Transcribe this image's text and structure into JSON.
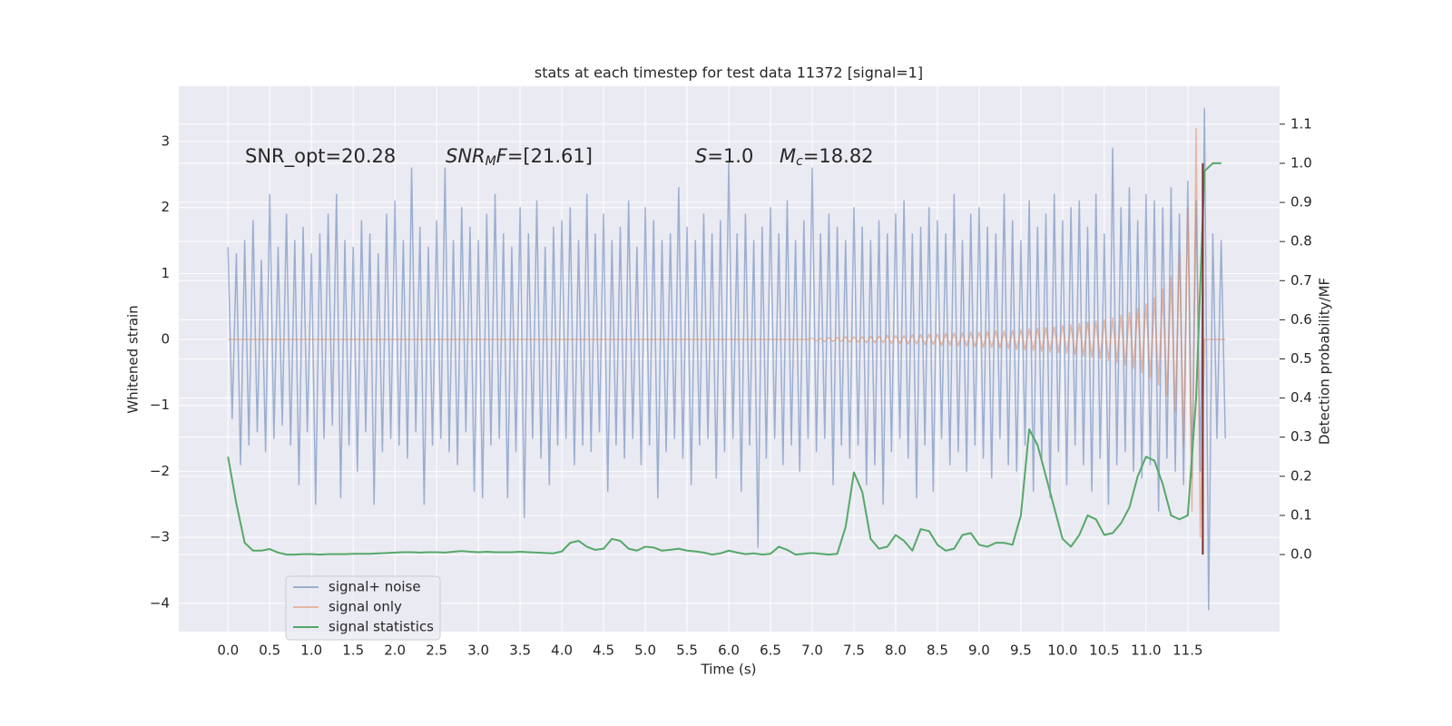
{
  "chart_data": {
    "type": "line",
    "title": "stats at each timestep for test data 11372 [signal=1]",
    "xlabel": "Time (s)",
    "ylabel": "Whitened strain",
    "y2label": "Detection probability/MF",
    "xlim": [
      -0.59,
      12.6
    ],
    "ylim": [
      -4.43,
      3.84
    ],
    "y2lim": [
      -0.197,
      1.197
    ],
    "xticks": [
      {
        "value": 0,
        "label": "0.0"
      },
      {
        "value": 0.5,
        "label": "0.5"
      },
      {
        "value": 1,
        "label": "1.0"
      },
      {
        "value": 1.5,
        "label": "1.5"
      },
      {
        "value": 2,
        "label": "2.0"
      },
      {
        "value": 2.5,
        "label": "2.5"
      },
      {
        "value": 3,
        "label": "3.0"
      },
      {
        "value": 3.5,
        "label": "3.5"
      },
      {
        "value": 4,
        "label": "4.0"
      },
      {
        "value": 4.5,
        "label": "4.5"
      },
      {
        "value": 5,
        "label": "5.0"
      },
      {
        "value": 5.5,
        "label": "5.5"
      },
      {
        "value": 6,
        "label": "6.0"
      },
      {
        "value": 6.5,
        "label": "6.5"
      },
      {
        "value": 7,
        "label": "7.0"
      },
      {
        "value": 7.5,
        "label": "7.5"
      },
      {
        "value": 8,
        "label": "8.0"
      },
      {
        "value": 8.5,
        "label": "8.5"
      },
      {
        "value": 9,
        "label": "9.0"
      },
      {
        "value": 9.5,
        "label": "9.5"
      },
      {
        "value": 10,
        "label": "10.0"
      },
      {
        "value": 10.5,
        "label": "10.5"
      },
      {
        "value": 11,
        "label": "11.0"
      },
      {
        "value": 11.5,
        "label": "11.5"
      }
    ],
    "yticks": [
      {
        "value": -4,
        "label": "−4"
      },
      {
        "value": -3,
        "label": "−3"
      },
      {
        "value": -2,
        "label": "−2"
      },
      {
        "value": -1,
        "label": "−1"
      },
      0,
      1,
      2,
      3
    ],
    "y2ticks": [
      {
        "value": 0,
        "label": "0.0"
      },
      {
        "value": 0.1,
        "label": "0.1"
      },
      {
        "value": 0.2,
        "label": "0.2"
      },
      {
        "value": 0.3,
        "label": "0.3"
      },
      {
        "value": 0.4,
        "label": "0.4"
      },
      {
        "value": 0.5,
        "label": "0.5"
      },
      {
        "value": 0.6,
        "label": "0.6"
      },
      {
        "value": 0.7,
        "label": "0.7"
      },
      {
        "value": 0.8,
        "label": "0.8"
      },
      {
        "value": 0.9,
        "label": "0.9"
      },
      {
        "value": 1,
        "label": "1.0"
      },
      {
        "value": 1.1,
        "label": "1.1"
      }
    ],
    "grid": true,
    "legend": "lower left",
    "annotations": [
      [
        {
          "text": "SNR_opt=20.28"
        }
      ],
      [
        {
          "text": "SNR",
          "italic": true
        },
        {
          "text": "M",
          "italic": true,
          "sub": true
        },
        {
          "text": "F",
          "italic": true
        },
        {
          "text": "=[21.61]"
        }
      ],
      [
        {
          "text": "S",
          "italic": true
        },
        {
          "text": "=1.0"
        }
      ],
      [
        {
          "text": "M",
          "italic": true
        },
        {
          "text": "c",
          "italic": true,
          "sub": true
        },
        {
          "text": "=18.82"
        }
      ]
    ],
    "marker_line": {
      "x": 11.68,
      "ymin": 0,
      "ymax": 1,
      "color": "#7a2e2e",
      "axis": "y2"
    },
    "series": [
      {
        "name": "signal+ noise",
        "color": "#4c72b0",
        "alpha": 0.5,
        "x": [
          0,
          0.05,
          0.1,
          0.15,
          0.2,
          0.25,
          0.3,
          0.35,
          0.4,
          0.45,
          0.5,
          0.55,
          0.6,
          0.65,
          0.7,
          0.75,
          0.8,
          0.85,
          0.9,
          0.95,
          1,
          1.05,
          1.1,
          1.15,
          1.2,
          1.25,
          1.3,
          1.35,
          1.4,
          1.45,
          1.5,
          1.55,
          1.6,
          1.65,
          1.7,
          1.75,
          1.8,
          1.85,
          1.9,
          1.95,
          2,
          2.05,
          2.1,
          2.15,
          2.2,
          2.25,
          2.3,
          2.35,
          2.4,
          2.45,
          2.5,
          2.55,
          2.6,
          2.65,
          2.7,
          2.75,
          2.8,
          2.85,
          2.9,
          2.95,
          3,
          3.05,
          3.1,
          3.15,
          3.2,
          3.25,
          3.3,
          3.35,
          3.4,
          3.45,
          3.5,
          3.55,
          3.6,
          3.65,
          3.7,
          3.75,
          3.8,
          3.85,
          3.9,
          3.95,
          4,
          4.05,
          4.1,
          4.15,
          4.2,
          4.25,
          4.3,
          4.35,
          4.4,
          4.45,
          4.5,
          4.55,
          4.6,
          4.65,
          4.7,
          4.75,
          4.8,
          4.85,
          4.9,
          4.95,
          5,
          5.05,
          5.1,
          5.15,
          5.2,
          5.25,
          5.3,
          5.35,
          5.4,
          5.45,
          5.5,
          5.55,
          5.6,
          5.65,
          5.7,
          5.75,
          5.8,
          5.85,
          5.9,
          5.95,
          6,
          6.05,
          6.1,
          6.15,
          6.2,
          6.25,
          6.3,
          6.35,
          6.4,
          6.45,
          6.5,
          6.55,
          6.6,
          6.65,
          6.7,
          6.75,
          6.8,
          6.85,
          6.9,
          6.95,
          7,
          7.05,
          7.1,
          7.15,
          7.2,
          7.25,
          7.3,
          7.35,
          7.4,
          7.45,
          7.5,
          7.55,
          7.6,
          7.65,
          7.7,
          7.75,
          7.8,
          7.85,
          7.9,
          7.95,
          8,
          8.05,
          8.1,
          8.15,
          8.2,
          8.25,
          8.3,
          8.35,
          8.4,
          8.45,
          8.5,
          8.55,
          8.6,
          8.65,
          8.7,
          8.75,
          8.8,
          8.85,
          8.9,
          8.95,
          9,
          9.05,
          9.1,
          9.15,
          9.2,
          9.25,
          9.3,
          9.35,
          9.4,
          9.45,
          9.5,
          9.55,
          9.6,
          9.65,
          9.7,
          9.75,
          9.8,
          9.85,
          9.9,
          9.95,
          10,
          10.05,
          10.1,
          10.15,
          10.2,
          10.25,
          10.3,
          10.35,
          10.4,
          10.45,
          10.5,
          10.55,
          10.6,
          10.65,
          10.7,
          10.75,
          10.8,
          10.85,
          10.9,
          10.95,
          11,
          11.05,
          11.1,
          11.15,
          11.2,
          11.25,
          11.3,
          11.35,
          11.4,
          11.45,
          11.5,
          11.55,
          11.6,
          11.65,
          11.7,
          11.75,
          11.8,
          11.85,
          11.9,
          11.95
        ],
        "values": [
          1.4,
          -1.2,
          1.3,
          -1.9,
          1.5,
          -1.6,
          1.8,
          -1.4,
          1.2,
          -1.7,
          2.2,
          -1.5,
          1.4,
          -1.3,
          1.9,
          -1.6,
          1.5,
          -2.2,
          1.7,
          -1.4,
          1.3,
          -2.5,
          1.6,
          -1.5,
          1.9,
          -1.3,
          2.2,
          -2.4,
          1.5,
          -1.6,
          1.4,
          -2.0,
          1.8,
          -1.4,
          1.6,
          -2.5,
          1.3,
          -1.7,
          1.9,
          -1.5,
          2.1,
          -1.6,
          1.5,
          -1.8,
          2.6,
          -1.4,
          1.7,
          -2.5,
          1.4,
          -1.6,
          1.8,
          -1.5,
          2.6,
          -1.7,
          1.5,
          -1.9,
          2.0,
          -1.4,
          1.7,
          -2.3,
          1.5,
          -2.4,
          1.9,
          -1.6,
          2.2,
          -1.5,
          1.6,
          -2.4,
          1.4,
          -1.7,
          2.0,
          -2.7,
          1.6,
          -1.5,
          2.1,
          -1.8,
          1.4,
          -2.2,
          1.7,
          -1.6,
          1.8,
          -1.5,
          2.0,
          -1.9,
          1.5,
          -1.6,
          2.2,
          -1.7,
          1.6,
          -1.4,
          1.9,
          -2.3,
          1.5,
          -1.6,
          1.7,
          -1.8,
          2.1,
          -1.5,
          1.4,
          -1.9,
          2.0,
          -1.6,
          1.8,
          -2.4,
          1.5,
          -1.7,
          1.6,
          -1.5,
          2.3,
          -1.8,
          1.7,
          -2.2,
          1.5,
          -1.6,
          1.9,
          -1.5,
          1.6,
          -2.1,
          1.8,
          -1.7,
          2.7,
          -1.5,
          1.6,
          -2.3,
          1.9,
          -1.6,
          1.5,
          -3.15,
          1.7,
          -1.8,
          2.0,
          -1.5,
          1.6,
          -1.9,
          2.1,
          -1.6,
          1.5,
          -2.0,
          1.8,
          -1.5,
          2.6,
          -1.7,
          1.6,
          -1.5,
          1.9,
          -2.2,
          1.7,
          -1.6,
          1.5,
          -1.8,
          2.0,
          -1.6,
          1.7,
          -2.2,
          1.5,
          -1.9,
          1.8,
          -2.5,
          1.6,
          -1.7,
          1.9,
          -1.5,
          2.1,
          -1.8,
          1.6,
          -2.4,
          1.7,
          -1.6,
          2.0,
          -2.3,
          1.8,
          -1.5,
          1.6,
          -1.9,
          2.2,
          -1.7,
          1.5,
          -2.0,
          1.9,
          -1.6,
          2.0,
          -1.8,
          1.7,
          -2.1,
          1.6,
          -1.5,
          2.2,
          -1.9,
          1.8,
          -2.0,
          1.5,
          -1.6,
          2.1,
          -2.3,
          1.7,
          -1.8,
          1.9,
          -2.4,
          2.2,
          -1.7,
          1.8,
          -2.2,
          2.0,
          -1.6,
          2.1,
          -1.9,
          1.7,
          -2.3,
          2.2,
          -1.8,
          1.6,
          -2.5,
          2.9,
          -1.9,
          2.0,
          -1.7,
          2.3,
          -2.0,
          1.8,
          -2.1,
          2.2,
          -1.9,
          2.1,
          -2.6,
          2.0,
          -1.8,
          2.3,
          -2.0,
          1.9,
          -2.2,
          2.4,
          -2.1,
          2.1,
          -2.0,
          3.5,
          -4.1,
          1.6,
          -1.5,
          1.5,
          -1.5
        ]
      },
      {
        "name": "signal only",
        "color": "#dd8452",
        "alpha": 0.5,
        "x": [
          0,
          6.95,
          7,
          7.05,
          7.1,
          7.15,
          7.2,
          7.25,
          7.3,
          7.35,
          7.4,
          7.45,
          7.5,
          7.55,
          7.6,
          7.65,
          7.7,
          7.75,
          7.8,
          7.85,
          7.9,
          7.95,
          8,
          8.05,
          8.1,
          8.15,
          8.2,
          8.25,
          8.3,
          8.35,
          8.4,
          8.45,
          8.5,
          8.55,
          8.6,
          8.65,
          8.7,
          8.75,
          8.8,
          8.85,
          8.9,
          8.95,
          9,
          9.05,
          9.1,
          9.15,
          9.2,
          9.25,
          9.3,
          9.35,
          9.4,
          9.45,
          9.5,
          9.55,
          9.6,
          9.65,
          9.7,
          9.75,
          9.8,
          9.85,
          9.9,
          9.95,
          10,
          10.05,
          10.1,
          10.15,
          10.2,
          10.25,
          10.3,
          10.35,
          10.4,
          10.45,
          10.5,
          10.55,
          10.6,
          10.65,
          10.7,
          10.75,
          10.8,
          10.85,
          10.9,
          10.95,
          11,
          11.05,
          11.1,
          11.15,
          11.2,
          11.25,
          11.3,
          11.35,
          11.4,
          11.45,
          11.5,
          11.55,
          11.6,
          11.65,
          11.7,
          11.75,
          11.8,
          11.85,
          11.9,
          11.95
        ],
        "values": [
          0,
          0,
          0.02,
          -0.02,
          0.02,
          -0.03,
          0.03,
          -0.03,
          0.03,
          -0.03,
          0.04,
          -0.04,
          0.04,
          -0.04,
          0.04,
          -0.05,
          0.05,
          -0.05,
          0.05,
          -0.05,
          0.06,
          -0.06,
          0.06,
          -0.06,
          0.06,
          -0.07,
          0.07,
          -0.07,
          0.07,
          -0.08,
          0.08,
          -0.08,
          0.08,
          -0.09,
          0.09,
          -0.09,
          0.1,
          -0.1,
          0.1,
          -0.1,
          0.11,
          -0.11,
          0.11,
          -0.12,
          0.12,
          -0.12,
          0.13,
          -0.13,
          0.13,
          -0.14,
          0.14,
          -0.15,
          0.15,
          -0.16,
          0.16,
          -0.17,
          0.17,
          -0.18,
          0.18,
          -0.19,
          0.19,
          -0.2,
          0.21,
          -0.21,
          0.22,
          -0.23,
          0.24,
          -0.25,
          0.26,
          -0.27,
          0.28,
          -0.29,
          0.3,
          -0.32,
          0.33,
          -0.35,
          0.37,
          -0.39,
          0.41,
          -0.44,
          0.47,
          -0.5,
          0.54,
          -0.58,
          0.63,
          -0.69,
          0.76,
          -0.85,
          0.96,
          -1.1,
          1.3,
          -1.6,
          2.0,
          -2.6,
          3.2,
          -3.0,
          0,
          0,
          0,
          0,
          0,
          0
        ]
      },
      {
        "name": "signal statistics",
        "color": "#55a868",
        "alpha": 1,
        "axis": "y2",
        "x": [
          0,
          0.1,
          0.2,
          0.3,
          0.4,
          0.5,
          0.6,
          0.7,
          0.8,
          0.9,
          1,
          1.1,
          1.2,
          1.3,
          1.4,
          1.5,
          1.6,
          1.7,
          1.8,
          1.9,
          2,
          2.1,
          2.2,
          2.3,
          2.4,
          2.5,
          2.6,
          2.7,
          2.8,
          2.9,
          3,
          3.1,
          3.2,
          3.3,
          3.4,
          3.5,
          3.6,
          3.7,
          3.8,
          3.9,
          4,
          4.1,
          4.2,
          4.3,
          4.4,
          4.5,
          4.6,
          4.7,
          4.8,
          4.9,
          5,
          5.1,
          5.2,
          5.3,
          5.4,
          5.5,
          5.6,
          5.7,
          5.8,
          5.9,
          6,
          6.1,
          6.2,
          6.3,
          6.4,
          6.5,
          6.6,
          6.7,
          6.8,
          6.9,
          7,
          7.1,
          7.2,
          7.3,
          7.4,
          7.5,
          7.6,
          7.7,
          7.8,
          7.9,
          8,
          8.1,
          8.2,
          8.3,
          8.4,
          8.5,
          8.6,
          8.7,
          8.8,
          8.9,
          9,
          9.1,
          9.2,
          9.3,
          9.4,
          9.5,
          9.6,
          9.7,
          9.8,
          9.9,
          10,
          10.1,
          10.2,
          10.3,
          10.4,
          10.5,
          10.6,
          10.7,
          10.8,
          10.9,
          11,
          11.1,
          11.2,
          11.3,
          11.4,
          11.5,
          11.6,
          11.7,
          11.8,
          11.9
        ],
        "values": [
          0.25,
          0.13,
          0.03,
          0.01,
          0.01,
          0.014,
          0.005,
          0,
          0,
          0.001,
          0.001,
          0,
          0.001,
          0.001,
          0.001,
          0.002,
          0.002,
          0.002,
          0.003,
          0.004,
          0.005,
          0.006,
          0.006,
          0.005,
          0.006,
          0.006,
          0.005,
          0.007,
          0.009,
          0.007,
          0.006,
          0.007,
          0.006,
          0.006,
          0.006,
          0.007,
          0.006,
          0.005,
          0.004,
          0.003,
          0.008,
          0.03,
          0.035,
          0.02,
          0.012,
          0.015,
          0.04,
          0.035,
          0.015,
          0.01,
          0.02,
          0.018,
          0.01,
          0.012,
          0.015,
          0.01,
          0.008,
          0.005,
          0,
          0.003,
          0.01,
          0.005,
          0.001,
          0.003,
          0,
          0.002,
          0.02,
          0.012,
          0,
          0.002,
          0.004,
          0.002,
          0,
          0.002,
          0.07,
          0.21,
          0.16,
          0.04,
          0.015,
          0.02,
          0.05,
          0.035,
          0.01,
          0.065,
          0.06,
          0.025,
          0.01,
          0.015,
          0.05,
          0.055,
          0.025,
          0.02,
          0.03,
          0.03,
          0.025,
          0.1,
          0.32,
          0.28,
          0.2,
          0.12,
          0.04,
          0.02,
          0.05,
          0.1,
          0.09,
          0.05,
          0.055,
          0.08,
          0.12,
          0.2,
          0.25,
          0.24,
          0.18,
          0.1,
          0.09,
          0.1,
          0.4,
          0.98,
          1.0,
          1.0
        ]
      }
    ]
  }
}
